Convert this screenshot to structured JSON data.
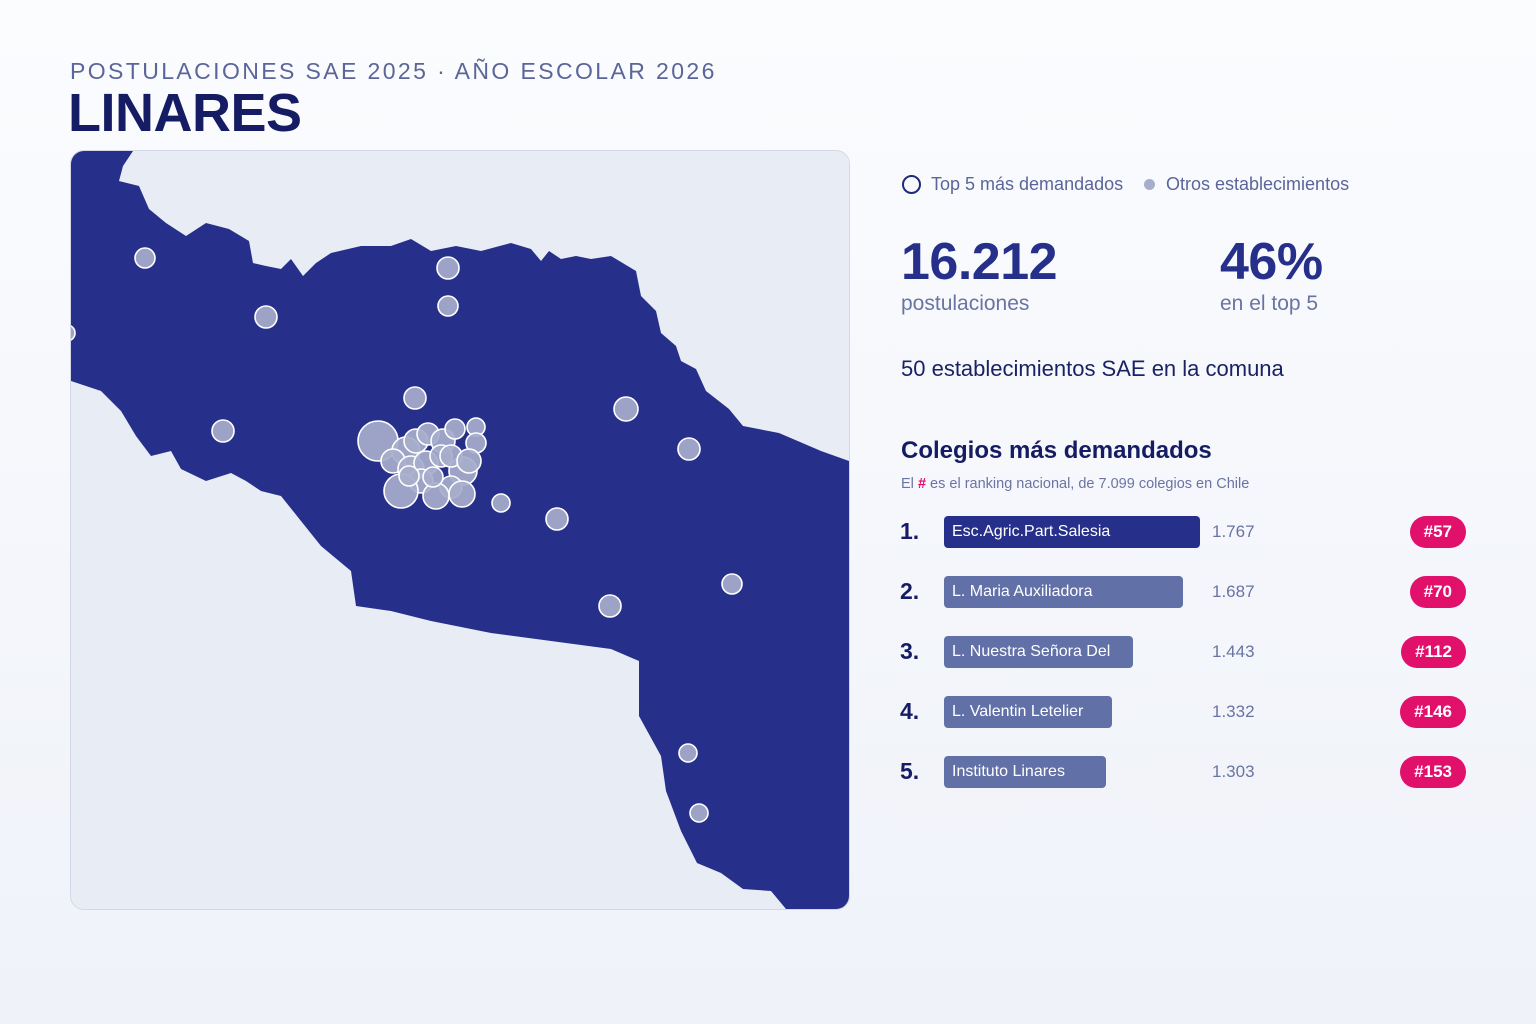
{
  "header": {
    "subtitle": "POSTULACIONES SAE 2025 · AÑO ESCOLAR 2026",
    "title": "LINARES"
  },
  "legend": {
    "top5": "Top 5 más demandados",
    "others": "Otros establecimientos"
  },
  "stats": {
    "applications_value": "16.212",
    "applications_label": "postulaciones",
    "top5_share_value": "46%",
    "top5_share_label": "en el top 5",
    "summary": "50 establecimientos SAE en la comuna"
  },
  "ranking": {
    "title": "Colegios más demandados",
    "note_prefix": "El",
    "note_hash": "#",
    "note_suffix": "es el ranking nacional, de 7.099 colegios en Chile",
    "items": [
      {
        "rank": "1.",
        "name": "Esc.Agric.Part.Salesia",
        "count": "1.767",
        "national": "#57",
        "value": 1767
      },
      {
        "rank": "2.",
        "name": "L. Maria Auxiliadora",
        "count": "1.687",
        "national": "#70",
        "value": 1687
      },
      {
        "rank": "3.",
        "name": "L. Nuestra Señora Del",
        "count": "1.443",
        "national": "#112",
        "value": 1443
      },
      {
        "rank": "4.",
        "name": "L. Valentin Letelier",
        "count": "1.332",
        "national": "#146",
        "value": 1332
      },
      {
        "rank": "5.",
        "name": "Instituto Linares",
        "count": "1.303",
        "national": "#153",
        "value": 1303
      }
    ]
  },
  "colors": {
    "commune_fill": "#26308a",
    "map_background": "#e8ecf5",
    "dot_fill": "#a7aecb",
    "accent": "#e0106b",
    "bar_top": "#26308a",
    "bar_other": "#6170a6"
  }
}
